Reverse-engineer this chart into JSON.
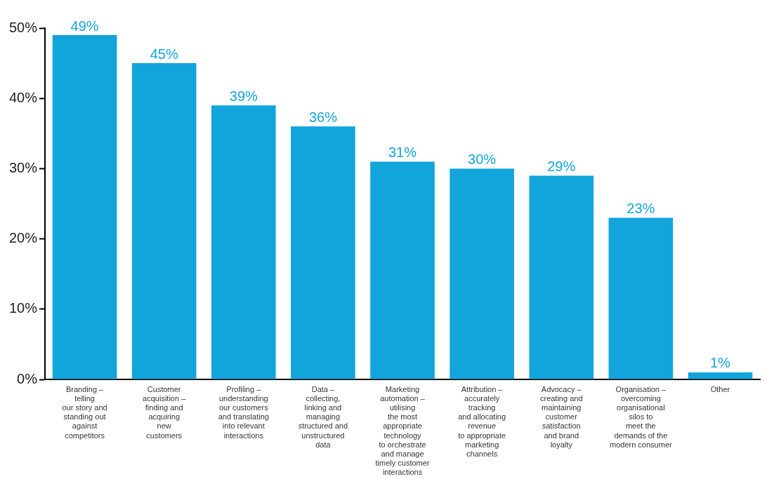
{
  "chart_data": {
    "type": "bar",
    "categories": [
      "Branding –\ntelling\nour story and\nstanding out\nagainst\ncompetitors",
      "Customer\nacquisition –\nfinding and\nacquiring\nnew\ncustomers",
      "Profiling –\nunderstanding\nour customers\nand translating\ninto relevant\ninteractions",
      "Data –\ncollecting,\nlinking and\nmanaging\nstructured and\nunstructured\ndata",
      "Marketing\nautomation –\nutilising\nthe most\nappropriate\ntechnology\nto orchestrate\nand manage\ntimely customer\ninteractions",
      "Attribution –\naccurately\ntracking\nand allocating\nrevenue\nto appropriate\nmarketing\nchannels",
      "Advocacy –\ncreating and\nmaintaining\ncustomer\nsatisfaction\nand brand\nloyalty",
      "Organisation –\novercoming\norganisational\nsilos to\nmeet the\ndemands of the\nmodern consumer",
      "Other"
    ],
    "values": [
      49,
      45,
      39,
      36,
      31,
      30,
      29,
      23,
      1
    ],
    "value_labels": [
      "49%",
      "45%",
      "39%",
      "36%",
      "31%",
      "30%",
      "29%",
      "23%",
      "1%"
    ],
    "color": "#12a5dc",
    "ylim": [
      0,
      50
    ],
    "yticks": [
      {
        "value": 0,
        "label": "0%"
      },
      {
        "value": 10,
        "label": "10%"
      },
      {
        "value": 20,
        "label": "20%"
      },
      {
        "value": 30,
        "label": "30%"
      },
      {
        "value": 40,
        "label": "40%"
      },
      {
        "value": 50,
        "label": "50%"
      }
    ],
    "grid": false,
    "legend": false
  }
}
